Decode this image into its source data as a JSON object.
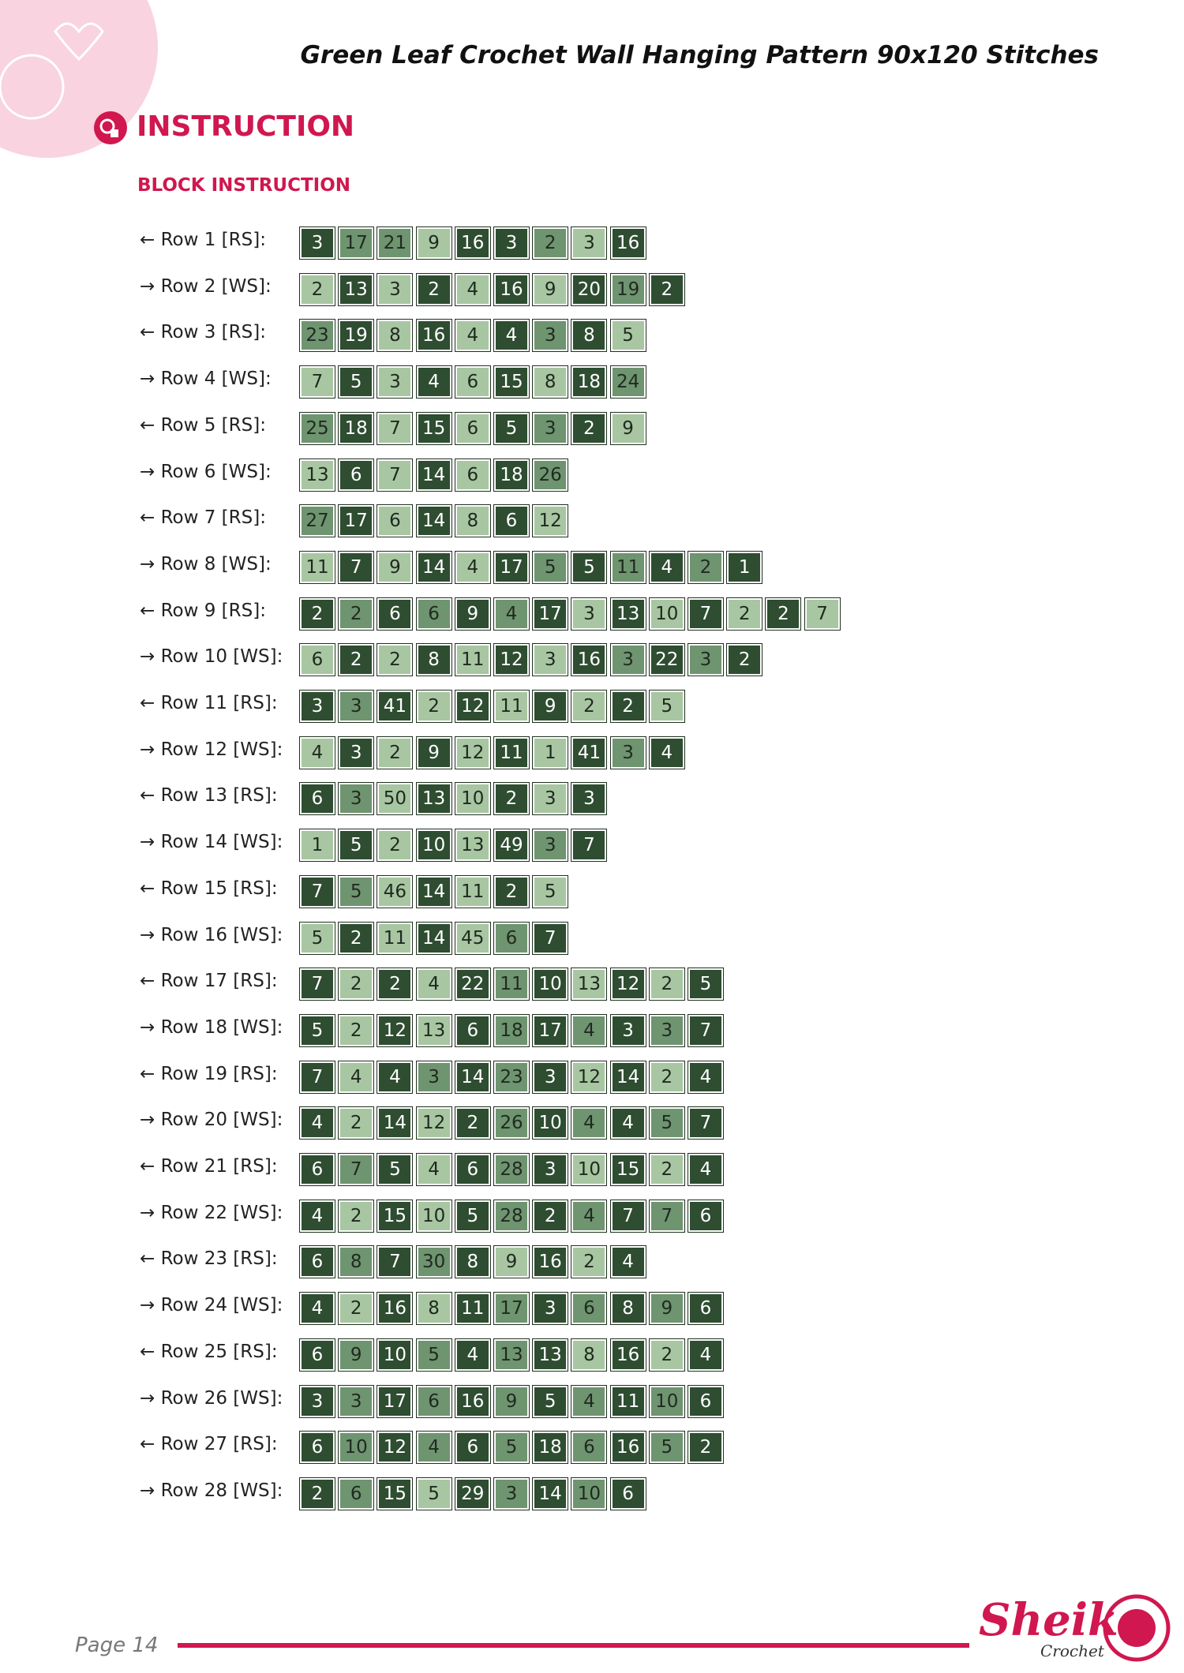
{
  "header": {
    "title": "Green Leaf Crochet Wall Hanging Pattern 90x120 Stitches"
  },
  "section": {
    "title": "INSTRUCTION",
    "subtitle": "BLOCK INSTRUCTION"
  },
  "rows": [
    {
      "label": "← Row 1 [RS]:",
      "cells": [
        3,
        17,
        21,
        9,
        16,
        3,
        2,
        3,
        16
      ],
      "colors": [
        "#2e4d31",
        "#6f9470",
        "#6f9470",
        "#a8c6a2",
        "#2e4d31",
        "#2e4d31",
        "#6f9470",
        "#a8c6a2",
        "#2e4d31"
      ]
    },
    {
      "label": "→ Row 2 [WS]:",
      "cells": [
        2,
        13,
        3,
        2,
        4,
        16,
        9,
        20,
        19,
        2
      ],
      "colors": [
        "#a8c6a2",
        "#2e4d31",
        "#a8c6a2",
        "#2e4d31",
        "#a8c6a2",
        "#2e4d31",
        "#a8c6a2",
        "#2e4d31",
        "#6f9470",
        "#2e4d31"
      ]
    },
    {
      "label": "← Row 3 [RS]:",
      "cells": [
        23,
        19,
        8,
        16,
        4,
        4,
        3,
        8,
        5
      ],
      "colors": [
        "#6f9470",
        "#2e4d31",
        "#a8c6a2",
        "#2e4d31",
        "#a8c6a2",
        "#2e4d31",
        "#6f9470",
        "#2e4d31",
        "#a8c6a2"
      ]
    },
    {
      "label": "→ Row 4 [WS]:",
      "cells": [
        7,
        5,
        3,
        4,
        6,
        15,
        8,
        18,
        24
      ],
      "colors": [
        "#a8c6a2",
        "#2e4d31",
        "#a8c6a2",
        "#2e4d31",
        "#a8c6a2",
        "#2e4d31",
        "#a8c6a2",
        "#2e4d31",
        "#6f9470"
      ]
    },
    {
      "label": "← Row 5 [RS]:",
      "cells": [
        25,
        18,
        7,
        15,
        6,
        5,
        3,
        2,
        9
      ],
      "colors": [
        "#6f9470",
        "#2e4d31",
        "#a8c6a2",
        "#2e4d31",
        "#a8c6a2",
        "#2e4d31",
        "#6f9470",
        "#2e4d31",
        "#a8c6a2"
      ]
    },
    {
      "label": "→ Row 6 [WS]:",
      "cells": [
        13,
        6,
        7,
        14,
        6,
        18,
        26
      ],
      "colors": [
        "#a8c6a2",
        "#2e4d31",
        "#a8c6a2",
        "#2e4d31",
        "#a8c6a2",
        "#2e4d31",
        "#6f9470"
      ]
    },
    {
      "label": "← Row 7 [RS]:",
      "cells": [
        27,
        17,
        6,
        14,
        8,
        6,
        12
      ],
      "colors": [
        "#6f9470",
        "#2e4d31",
        "#a8c6a2",
        "#2e4d31",
        "#a8c6a2",
        "#2e4d31",
        "#a8c6a2"
      ]
    },
    {
      "label": "→ Row 8 [WS]:",
      "cells": [
        11,
        7,
        9,
        14,
        4,
        17,
        5,
        5,
        11,
        4,
        2,
        1
      ],
      "colors": [
        "#a8c6a2",
        "#2e4d31",
        "#a8c6a2",
        "#2e4d31",
        "#a8c6a2",
        "#2e4d31",
        "#6f9470",
        "#2e4d31",
        "#6f9470",
        "#2e4d31",
        "#6f9470",
        "#2e4d31"
      ]
    },
    {
      "label": "← Row 9 [RS]:",
      "cells": [
        2,
        2,
        6,
        6,
        9,
        4,
        17,
        3,
        13,
        10,
        7,
        2,
        2,
        7
      ],
      "colors": [
        "#2e4d31",
        "#6f9470",
        "#2e4d31",
        "#6f9470",
        "#2e4d31",
        "#6f9470",
        "#2e4d31",
        "#a8c6a2",
        "#2e4d31",
        "#a8c6a2",
        "#2e4d31",
        "#a8c6a2",
        "#2e4d31",
        "#a8c6a2"
      ]
    },
    {
      "label": "→ Row 10 [WS]:",
      "cells": [
        6,
        2,
        2,
        8,
        11,
        12,
        3,
        16,
        3,
        22,
        3,
        2
      ],
      "colors": [
        "#a8c6a2",
        "#2e4d31",
        "#a8c6a2",
        "#2e4d31",
        "#a8c6a2",
        "#2e4d31",
        "#a8c6a2",
        "#2e4d31",
        "#6f9470",
        "#2e4d31",
        "#6f9470",
        "#2e4d31"
      ]
    },
    {
      "label": "← Row 11 [RS]:",
      "cells": [
        3,
        3,
        41,
        2,
        12,
        11,
        9,
        2,
        2,
        5
      ],
      "colors": [
        "#2e4d31",
        "#6f9470",
        "#2e4d31",
        "#a8c6a2",
        "#2e4d31",
        "#a8c6a2",
        "#2e4d31",
        "#a8c6a2",
        "#2e4d31",
        "#a8c6a2"
      ]
    },
    {
      "label": "→ Row 12 [WS]:",
      "cells": [
        4,
        3,
        2,
        9,
        12,
        11,
        1,
        41,
        3,
        4
      ],
      "colors": [
        "#a8c6a2",
        "#2e4d31",
        "#a8c6a2",
        "#2e4d31",
        "#a8c6a2",
        "#2e4d31",
        "#a8c6a2",
        "#2e4d31",
        "#6f9470",
        "#2e4d31"
      ]
    },
    {
      "label": "← Row 13 [RS]:",
      "cells": [
        6,
        3,
        50,
        13,
        10,
        2,
        3,
        3
      ],
      "colors": [
        "#2e4d31",
        "#6f9470",
        "#a8c6a2",
        "#2e4d31",
        "#a8c6a2",
        "#2e4d31",
        "#a8c6a2",
        "#2e4d31"
      ]
    },
    {
      "label": "→ Row 14 [WS]:",
      "cells": [
        1,
        5,
        2,
        10,
        13,
        49,
        3,
        7
      ],
      "colors": [
        "#a8c6a2",
        "#2e4d31",
        "#a8c6a2",
        "#2e4d31",
        "#a8c6a2",
        "#2e4d31",
        "#6f9470",
        "#2e4d31"
      ]
    },
    {
      "label": "← Row 15 [RS]:",
      "cells": [
        7,
        5,
        46,
        14,
        11,
        2,
        5
      ],
      "colors": [
        "#2e4d31",
        "#6f9470",
        "#a8c6a2",
        "#2e4d31",
        "#a8c6a2",
        "#2e4d31",
        "#a8c6a2"
      ]
    },
    {
      "label": "→ Row 16 [WS]:",
      "cells": [
        5,
        2,
        11,
        14,
        45,
        6,
        7
      ],
      "colors": [
        "#a8c6a2",
        "#2e4d31",
        "#a8c6a2",
        "#2e4d31",
        "#a8c6a2",
        "#6f9470",
        "#2e4d31"
      ]
    },
    {
      "label": "← Row 17 [RS]:",
      "cells": [
        7,
        2,
        2,
        4,
        22,
        11,
        10,
        13,
        12,
        2,
        5
      ],
      "colors": [
        "#2e4d31",
        "#a8c6a2",
        "#2e4d31",
        "#a8c6a2",
        "#2e4d31",
        "#6f9470",
        "#2e4d31",
        "#a8c6a2",
        "#2e4d31",
        "#a8c6a2",
        "#2e4d31"
      ]
    },
    {
      "label": "→ Row 18 [WS]:",
      "cells": [
        5,
        2,
        12,
        13,
        6,
        18,
        17,
        4,
        3,
        3,
        7
      ],
      "colors": [
        "#2e4d31",
        "#a8c6a2",
        "#2e4d31",
        "#a8c6a2",
        "#2e4d31",
        "#6f9470",
        "#2e4d31",
        "#6f9470",
        "#2e4d31",
        "#6f9470",
        "#2e4d31"
      ]
    },
    {
      "label": "← Row 19 [RS]:",
      "cells": [
        7,
        4,
        4,
        3,
        14,
        23,
        3,
        12,
        14,
        2,
        4
      ],
      "colors": [
        "#2e4d31",
        "#a8c6a2",
        "#2e4d31",
        "#6f9470",
        "#2e4d31",
        "#6f9470",
        "#2e4d31",
        "#a8c6a2",
        "#2e4d31",
        "#a8c6a2",
        "#2e4d31"
      ]
    },
    {
      "label": "→ Row 20 [WS]:",
      "cells": [
        4,
        2,
        14,
        12,
        2,
        26,
        10,
        4,
        4,
        5,
        7
      ],
      "colors": [
        "#2e4d31",
        "#a8c6a2",
        "#2e4d31",
        "#a8c6a2",
        "#2e4d31",
        "#6f9470",
        "#2e4d31",
        "#6f9470",
        "#2e4d31",
        "#6f9470",
        "#2e4d31"
      ]
    },
    {
      "label": "← Row 21 [RS]:",
      "cells": [
        6,
        7,
        5,
        4,
        6,
        28,
        3,
        10,
        15,
        2,
        4
      ],
      "colors": [
        "#2e4d31",
        "#6f9470",
        "#2e4d31",
        "#a8c6a2",
        "#2e4d31",
        "#6f9470",
        "#2e4d31",
        "#a8c6a2",
        "#2e4d31",
        "#a8c6a2",
        "#2e4d31"
      ]
    },
    {
      "label": "→ Row 22 [WS]:",
      "cells": [
        4,
        2,
        15,
        10,
        5,
        28,
        2,
        4,
        7,
        7,
        6
      ],
      "colors": [
        "#2e4d31",
        "#a8c6a2",
        "#2e4d31",
        "#a8c6a2",
        "#2e4d31",
        "#6f9470",
        "#2e4d31",
        "#6f9470",
        "#2e4d31",
        "#6f9470",
        "#2e4d31"
      ]
    },
    {
      "label": "← Row 23 [RS]:",
      "cells": [
        6,
        8,
        7,
        30,
        8,
        9,
        16,
        2,
        4
      ],
      "colors": [
        "#2e4d31",
        "#6f9470",
        "#2e4d31",
        "#6f9470",
        "#2e4d31",
        "#a8c6a2",
        "#2e4d31",
        "#a8c6a2",
        "#2e4d31"
      ]
    },
    {
      "label": "→ Row 24 [WS]:",
      "cells": [
        4,
        2,
        16,
        8,
        11,
        17,
        3,
        6,
        8,
        9,
        6
      ],
      "colors": [
        "#2e4d31",
        "#a8c6a2",
        "#2e4d31",
        "#a8c6a2",
        "#2e4d31",
        "#6f9470",
        "#2e4d31",
        "#6f9470",
        "#2e4d31",
        "#6f9470",
        "#2e4d31"
      ]
    },
    {
      "label": "← Row 25 [RS]:",
      "cells": [
        6,
        9,
        10,
        5,
        4,
        13,
        13,
        8,
        16,
        2,
        4
      ],
      "colors": [
        "#2e4d31",
        "#6f9470",
        "#2e4d31",
        "#6f9470",
        "#2e4d31",
        "#6f9470",
        "#2e4d31",
        "#a8c6a2",
        "#2e4d31",
        "#a8c6a2",
        "#2e4d31"
      ]
    },
    {
      "label": "→ Row 26 [WS]:",
      "cells": [
        3,
        3,
        17,
        6,
        16,
        9,
        5,
        4,
        11,
        10,
        6
      ],
      "colors": [
        "#2e4d31",
        "#6f9470",
        "#2e4d31",
        "#6f9470",
        "#2e4d31",
        "#6f9470",
        "#2e4d31",
        "#6f9470",
        "#2e4d31",
        "#6f9470",
        "#2e4d31"
      ]
    },
    {
      "label": "← Row 27 [RS]:",
      "cells": [
        6,
        10,
        12,
        4,
        6,
        5,
        18,
        6,
        16,
        5,
        2
      ],
      "colors": [
        "#2e4d31",
        "#6f9470",
        "#2e4d31",
        "#6f9470",
        "#2e4d31",
        "#6f9470",
        "#2e4d31",
        "#6f9470",
        "#2e4d31",
        "#6f9470",
        "#2e4d31"
      ]
    },
    {
      "label": "→ Row 28 [WS]:",
      "cells": [
        2,
        6,
        15,
        5,
        29,
        3,
        14,
        10,
        6
      ],
      "colors": [
        "#2e4d31",
        "#6f9470",
        "#2e4d31",
        "#a8c6a2",
        "#2e4d31",
        "#6f9470",
        "#2e4d31",
        "#6f9470",
        "#2e4d31"
      ]
    }
  ],
  "footer": {
    "page": "Page 14",
    "logo": "Sheika",
    "logo_sub": "Crochet"
  }
}
